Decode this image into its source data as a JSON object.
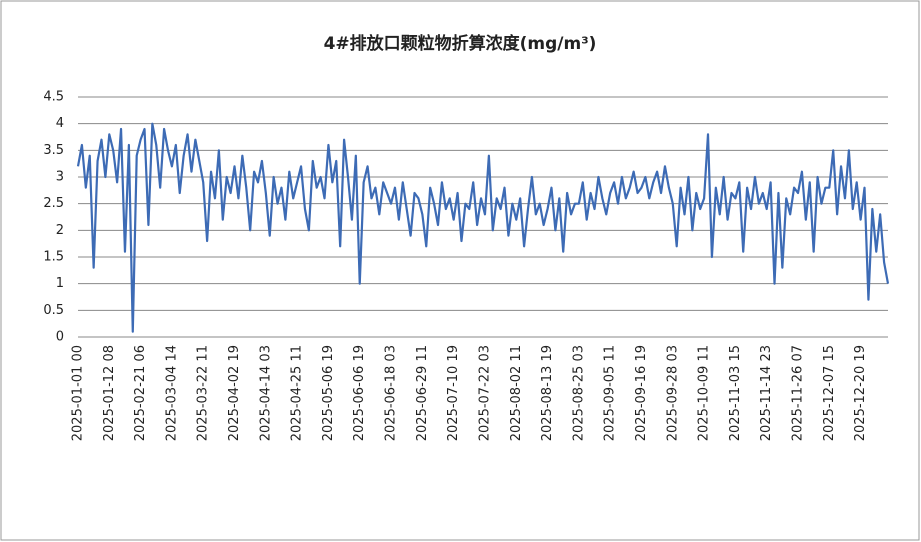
{
  "chart_data": {
    "type": "line",
    "title": "4#排放口颗粒物折算浓度(mg/m³)",
    "color": "#3d6bb5",
    "grid": true,
    "ylim": [
      0,
      4.5
    ],
    "yticks": [
      0,
      0.5,
      1,
      1.5,
      2,
      2.5,
      3,
      3.5,
      4,
      4.5
    ],
    "categories": [
      "2025-01-01 00",
      null,
      null,
      null,
      null,
      null,
      null,
      null,
      "2025-01-12 08",
      null,
      null,
      null,
      null,
      null,
      null,
      null,
      "2025-02-21 06",
      null,
      null,
      null,
      null,
      null,
      null,
      null,
      "2025-03-04 14",
      null,
      null,
      null,
      null,
      null,
      null,
      null,
      "2025-03-22 11",
      null,
      null,
      null,
      null,
      null,
      null,
      null,
      "2025-04-02 19",
      null,
      null,
      null,
      null,
      null,
      null,
      null,
      "2025-04-14 03",
      null,
      null,
      null,
      null,
      null,
      null,
      null,
      "2025-04-25 11",
      null,
      null,
      null,
      null,
      null,
      null,
      null,
      "2025-05-06 19",
      null,
      null,
      null,
      null,
      null,
      null,
      null,
      "2025-06-06 19",
      null,
      null,
      null,
      null,
      null,
      null,
      null,
      "2025-06-18 03",
      null,
      null,
      null,
      null,
      null,
      null,
      null,
      "2025-06-29 11",
      null,
      null,
      null,
      null,
      null,
      null,
      null,
      "2025-07-10 19",
      null,
      null,
      null,
      null,
      null,
      null,
      null,
      "2025-07-22 03",
      null,
      null,
      null,
      null,
      null,
      null,
      null,
      "2025-08-02 11",
      null,
      null,
      null,
      null,
      null,
      null,
      null,
      "2025-08-13 19",
      null,
      null,
      null,
      null,
      null,
      null,
      null,
      "2025-08-25 03",
      null,
      null,
      null,
      null,
      null,
      null,
      null,
      "2025-09-05 11",
      null,
      null,
      null,
      null,
      null,
      null,
      null,
      "2025-09-16 19",
      null,
      null,
      null,
      null,
      null,
      null,
      null,
      "2025-09-28 03",
      null,
      null,
      null,
      null,
      null,
      null,
      null,
      "2025-10-09 11",
      null,
      null,
      null,
      null,
      null,
      null,
      null,
      "2025-11-03 15",
      null,
      null,
      null,
      null,
      null,
      null,
      null,
      "2025-11-14 23",
      null,
      null,
      null,
      null,
      null,
      null,
      null,
      "2025-11-26 07",
      null,
      null,
      null,
      null,
      null,
      null,
      null,
      "2025-12-07 15",
      null,
      null,
      null,
      null,
      null,
      null,
      null,
      "2025-12-20 19",
      null,
      null,
      null,
      null,
      null,
      null,
      null
    ],
    "values": [
      3.2,
      3.6,
      2.8,
      3.4,
      1.3,
      3.3,
      3.7,
      3.0,
      3.8,
      3.5,
      2.9,
      3.9,
      1.6,
      3.6,
      0.1,
      3.4,
      3.7,
      3.9,
      2.1,
      4.0,
      3.6,
      2.8,
      3.9,
      3.5,
      3.2,
      3.6,
      2.7,
      3.4,
      3.8,
      3.1,
      3.7,
      3.3,
      2.9,
      1.8,
      3.1,
      2.6,
      3.5,
      2.2,
      3.0,
      2.7,
      3.2,
      2.6,
      3.4,
      2.8,
      2.0,
      3.1,
      2.9,
      3.3,
      2.7,
      1.9,
      3.0,
      2.5,
      2.8,
      2.2,
      3.1,
      2.6,
      2.9,
      3.2,
      2.4,
      2.0,
      3.3,
      2.8,
      3.0,
      2.6,
      3.6,
      2.9,
      3.3,
      1.7,
      3.7,
      3.0,
      2.2,
      3.4,
      1.0,
      2.9,
      3.2,
      2.6,
      2.8,
      2.3,
      2.9,
      2.7,
      2.5,
      2.8,
      2.2,
      2.9,
      2.4,
      1.9,
      2.7,
      2.6,
      2.3,
      1.7,
      2.8,
      2.5,
      2.1,
      2.9,
      2.4,
      2.6,
      2.2,
      2.7,
      1.8,
      2.5,
      2.4,
      2.9,
      2.1,
      2.6,
      2.3,
      3.4,
      2.0,
      2.6,
      2.4,
      2.8,
      1.9,
      2.5,
      2.2,
      2.6,
      1.7,
      2.4,
      3.0,
      2.3,
      2.5,
      2.1,
      2.4,
      2.8,
      2.0,
      2.6,
      1.6,
      2.7,
      2.3,
      2.5,
      2.5,
      2.9,
      2.2,
      2.7,
      2.4,
      3.0,
      2.6,
      2.3,
      2.7,
      2.9,
      2.5,
      3.0,
      2.6,
      2.8,
      3.1,
      2.7,
      2.8,
      3.0,
      2.6,
      2.9,
      3.1,
      2.7,
      3.2,
      2.8,
      2.5,
      1.7,
      2.8,
      2.3,
      3.0,
      2.0,
      2.7,
      2.4,
      2.6,
      3.8,
      1.5,
      2.8,
      2.3,
      3.0,
      2.2,
      2.7,
      2.6,
      2.9,
      1.6,
      2.8,
      2.4,
      3.0,
      2.5,
      2.7,
      2.4,
      2.9,
      1.0,
      2.7,
      1.3,
      2.6,
      2.3,
      2.8,
      2.7,
      3.1,
      2.2,
      2.9,
      1.6,
      3.0,
      2.5,
      2.8,
      2.8,
      3.5,
      2.3,
      3.2,
      2.6,
      3.5,
      2.4,
      2.9,
      2.2,
      2.8,
      0.7,
      2.4,
      1.6,
      2.3,
      1.4,
      1.0
    ]
  }
}
